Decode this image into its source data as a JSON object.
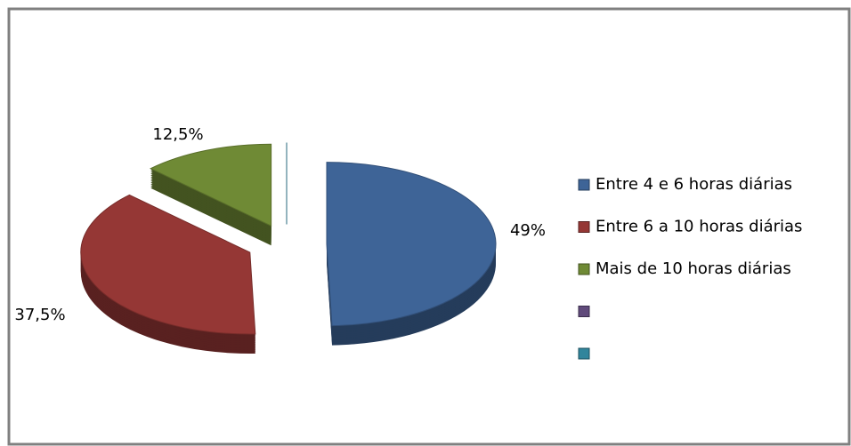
{
  "chart_data": {
    "type": "pie",
    "categories": [
      "Entre 4 e 6 horas diárias",
      "Entre 6 a 10 horas diárias",
      "Mais de 10 horas diárias",
      null,
      null
    ],
    "values": [
      49,
      37.5,
      12.5,
      0,
      0
    ],
    "value_labels": [
      "49%",
      "37,5%",
      "12,5%",
      null,
      null
    ],
    "colors": [
      "#3e6497",
      "#953735",
      "#6f8a35",
      "#604a7b",
      "#31859c"
    ],
    "legend": "right"
  }
}
